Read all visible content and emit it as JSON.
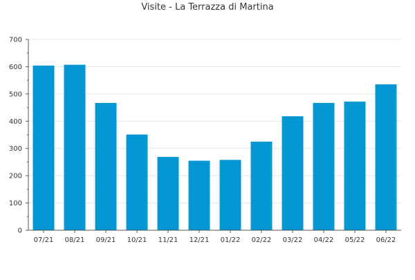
{
  "chart_data": {
    "type": "bar",
    "title": "Visite - La Terrazza di Martina",
    "categories": [
      "07/21",
      "08/21",
      "09/21",
      "10/21",
      "11/21",
      "12/21",
      "01/22",
      "02/22",
      "03/22",
      "04/22",
      "05/22",
      "06/22"
    ],
    "values": [
      604,
      607,
      467,
      351,
      269,
      255,
      258,
      325,
      418,
      467,
      472,
      535
    ],
    "xlabel": "",
    "ylabel": "",
    "ylim": [
      0,
      700
    ],
    "yticks": [
      "0",
      "100",
      "200",
      "300",
      "400",
      "500",
      "600",
      "700"
    ],
    "grid": true,
    "legend": "none"
  },
  "colors": {
    "bar": "#0497d3",
    "grid": "#e6e6e6",
    "axis": "#555555"
  }
}
